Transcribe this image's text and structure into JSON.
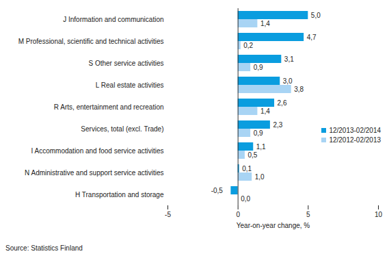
{
  "chart_data": {
    "type": "bar",
    "orientation": "horizontal",
    "categories": [
      "J Information and communication",
      "M Professional, scientific and technical activities",
      "S Other service activities",
      "L Real estate activities",
      "R Arts, entertainment and recreation",
      "Services, total (excl. Trade)",
      "I Accommodation and food service activities",
      "N Administrative and support service activities",
      "H Transportation and storage"
    ],
    "series": [
      {
        "name": "12/2013-02/2014",
        "color": "#0a9ddf",
        "values": [
          5.0,
          4.7,
          3.1,
          3.0,
          2.6,
          2.3,
          1.1,
          0.1,
          -0.5
        ],
        "value_labels": [
          "5,0",
          "4,7",
          "3,1",
          "3,0",
          "2,6",
          "2,3",
          "1,1",
          "0,1",
          "-0,5"
        ]
      },
      {
        "name": "12/2012-02/2013",
        "color": "#a8d4f4",
        "values": [
          1.4,
          0.2,
          0.9,
          3.8,
          1.4,
          0.9,
          0.5,
          1.0,
          0.0
        ],
        "value_labels": [
          "1,4",
          "0,2",
          "0,9",
          "3,8",
          "1,4",
          "0,9",
          "0,5",
          "1,0",
          "0,0"
        ]
      }
    ],
    "xlabel": "Year-on-year change, %",
    "xlim": [
      -5,
      10
    ],
    "xticks": [
      -5,
      0,
      5,
      10
    ],
    "grid": false,
    "legend": "right",
    "data_labels": true,
    "source": "Source: Statistics Finland"
  }
}
